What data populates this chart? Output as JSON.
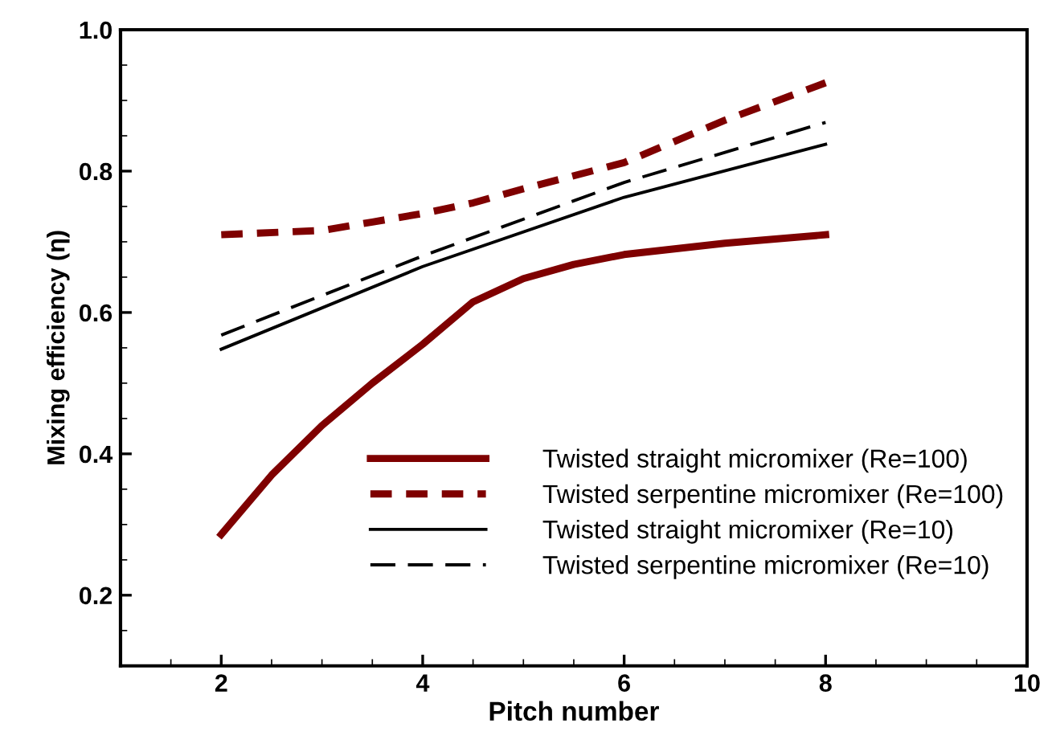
{
  "chart_data": {
    "type": "line",
    "xlabel": "Pitch number",
    "ylabel": "Mixing efficiency (η)",
    "xlim": [
      1,
      10
    ],
    "ylim": [
      0.1,
      1.0
    ],
    "xticks": [
      2,
      4,
      6,
      8,
      10
    ],
    "yticks": [
      0.2,
      0.4,
      0.6,
      0.8,
      {
        "value": 1,
        "label": "1.0"
      }
    ],
    "grid": false,
    "legend": "bottom right",
    "marker": "none",
    "series": [
      {
        "name": "Twisted straight micromixer (Re=100)",
        "color": "#7f0000",
        "line_style": "solid",
        "x": [
          2,
          2.5,
          3,
          3.5,
          4,
          4.5,
          5,
          5.5,
          6,
          7,
          8
        ],
        "values": [
          0.286,
          0.37,
          0.44,
          0.5,
          0.555,
          0.615,
          0.648,
          0.668,
          0.682,
          0.698,
          0.71
        ]
      },
      {
        "name": "Twisted serpentine micromixer (Re=100)",
        "color": "#7f0000",
        "line_style": "dashed",
        "x": [
          2,
          3,
          3.5,
          4,
          4.5,
          5,
          6,
          7,
          8
        ],
        "values": [
          0.71,
          0.716,
          0.728,
          0.74,
          0.755,
          0.775,
          0.812,
          0.872,
          0.925
        ]
      },
      {
        "name": "Twisted straight micromixer (Re=10)",
        "color": "#000000",
        "line_style": "solid",
        "x": [
          2,
          4,
          6,
          8
        ],
        "values": [
          0.548,
          0.665,
          0.763,
          0.838
        ]
      },
      {
        "name": "Twisted serpentine micromixer (Re=10)",
        "color": "#000000",
        "line_style": "dashed",
        "x": [
          2,
          4,
          6,
          8
        ],
        "values": [
          0.568,
          0.68,
          0.784,
          0.869
        ]
      }
    ]
  }
}
